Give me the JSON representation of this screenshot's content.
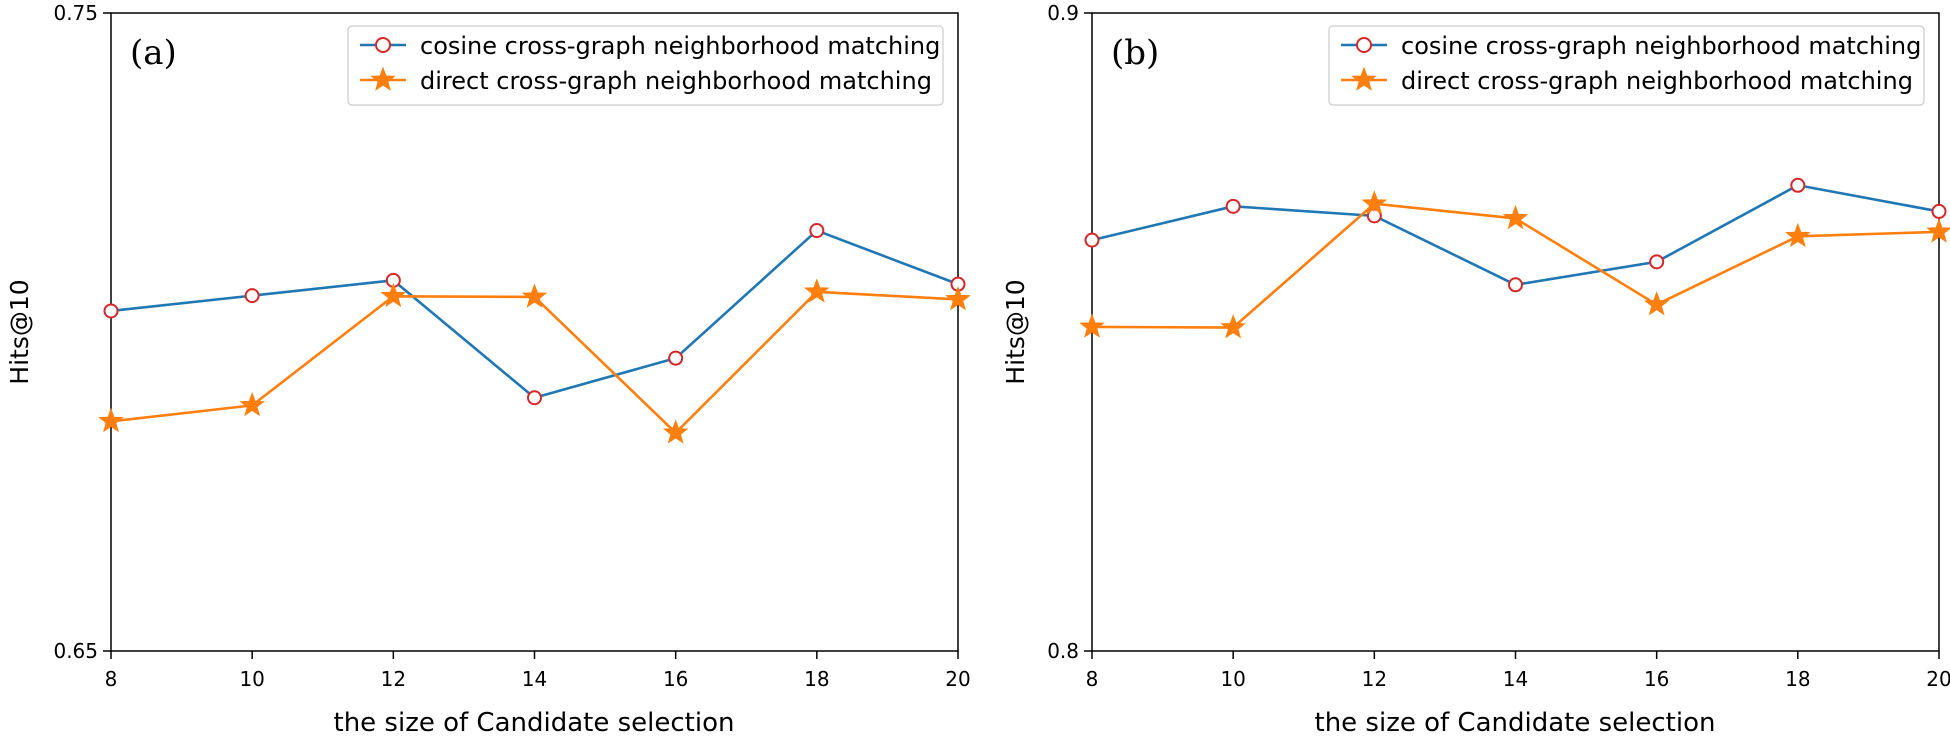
{
  "chart_data": [
    {
      "type": "line",
      "panel_label": "(a)",
      "xlabel": "the size of Candidate selection",
      "ylabel": "Hits@10",
      "xlim": [
        8,
        20
      ],
      "ylim": [
        0.65,
        0.75
      ],
      "x_ticks": [
        "8",
        "10",
        "12",
        "14",
        "16",
        "18",
        "20"
      ],
      "y_ticks": [
        "0.65",
        "0.75"
      ],
      "grid": false,
      "legend_position": "top-right",
      "x": [
        8,
        10,
        12,
        14,
        16,
        18,
        20
      ],
      "series": [
        {
          "name": "cosine cross-graph neighborhood matching",
          "color": "#1f77b4",
          "marker": "circle",
          "values": [
            0.7033,
            0.7057,
            0.7081,
            0.6897,
            0.6959,
            0.7159,
            0.7075
          ]
        },
        {
          "name": "direct cross-graph neighborhood matching",
          "color": "#ff7f0e",
          "marker": "star",
          "values": [
            0.686,
            0.6885,
            0.7056,
            0.7055,
            0.6842,
            0.7063,
            0.7051
          ]
        }
      ]
    },
    {
      "type": "line",
      "panel_label": "(b)",
      "xlabel": "the size of Candidate selection",
      "ylabel": "Hits@10",
      "xlim": [
        8,
        20
      ],
      "ylim": [
        0.8,
        0.9
      ],
      "x_ticks": [
        "8",
        "10",
        "12",
        "14",
        "16",
        "18",
        "20"
      ],
      "y_ticks": [
        "0.8",
        "0.9"
      ],
      "grid": false,
      "legend_position": "top-right",
      "x": [
        8,
        10,
        12,
        14,
        16,
        18,
        20
      ],
      "series": [
        {
          "name": "cosine cross-graph neighborhood matching",
          "color": "#1f77b4",
          "marker": "circle",
          "values": [
            0.8644,
            0.8697,
            0.8682,
            0.8574,
            0.861,
            0.873,
            0.8689
          ]
        },
        {
          "name": "direct cross-graph neighborhood matching",
          "color": "#ff7f0e",
          "marker": "star",
          "values": [
            0.8508,
            0.8507,
            0.8701,
            0.8678,
            0.8543,
            0.865,
            0.8657
          ]
        }
      ]
    }
  ]
}
